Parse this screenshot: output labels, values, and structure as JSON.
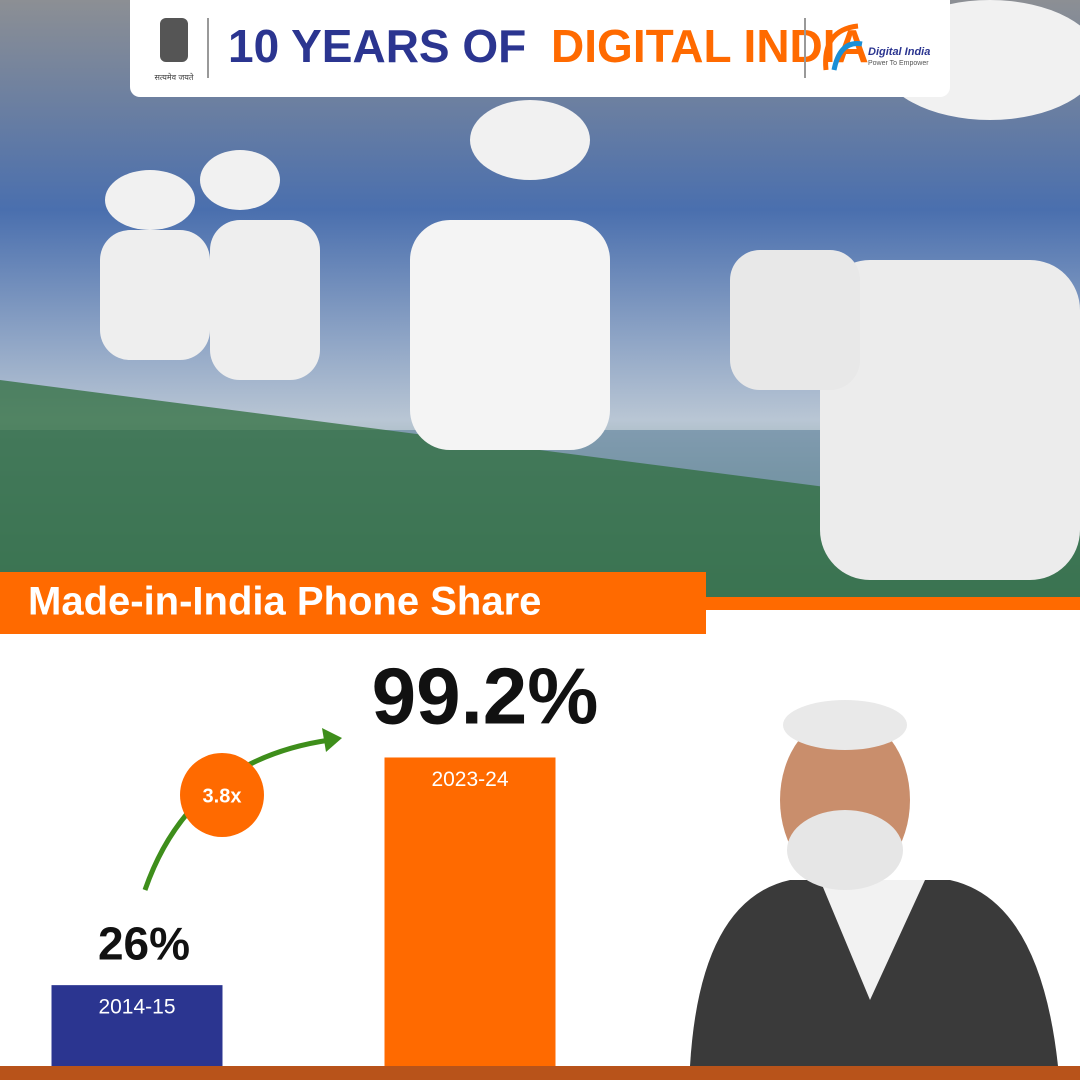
{
  "header": {
    "emblem_motto": "सत्यमेव जयते",
    "title_part1": "10 YEARS OF",
    "title_part2": "DIGITAL INDIA",
    "logo_name": "Digital India",
    "logo_tagline": "Power To Empower"
  },
  "chart_data": {
    "type": "bar",
    "title": "Made-in-India Phone Share",
    "categories": [
      "2014-15",
      "2023-24"
    ],
    "values": [
      26,
      99.2
    ],
    "value_labels": [
      "26%",
      "99.2%"
    ],
    "colors": [
      "#2b3590",
      "#ff6a00"
    ],
    "ylim": [
      0,
      100
    ],
    "annotation": "3.8x"
  }
}
